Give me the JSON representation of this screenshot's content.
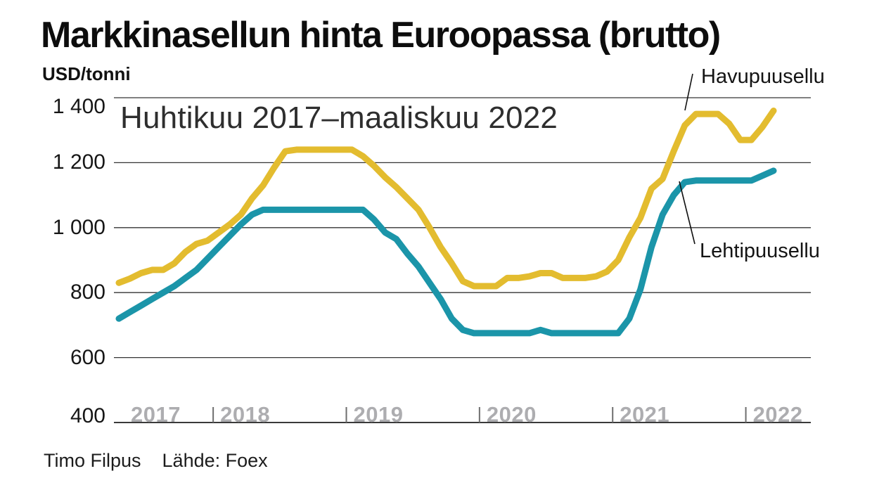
{
  "title": "Markkinasellun hinta Euroopassa (brutto)",
  "unit_label": "USD/tonni",
  "period_label": "Huhtikuu 2017–maaliskuu 2022",
  "footer": {
    "byline": "Timo Filpus",
    "source": "Lähde: Foex"
  },
  "chart_data": {
    "type": "line",
    "title": "Markkinasellun hinta Euroopassa (brutto)",
    "ylabel": "USD/tonni",
    "subtitle": "Huhtikuu 2017–maaliskuu 2022",
    "x_monthly_start": "2017-04",
    "x_monthly_end": "2022-03",
    "ylim": [
      400,
      1400
    ],
    "grid": "horizontal",
    "legend_position": "direct-annotations",
    "y_ticks": [
      {
        "value": 1400,
        "label": "1 400"
      },
      {
        "value": 1200,
        "label": "1 200"
      },
      {
        "value": 1000,
        "label": "1 000"
      },
      {
        "value": 800,
        "label": "800"
      },
      {
        "value": 600,
        "label": "600"
      },
      {
        "value": 400,
        "label": "400"
      }
    ],
    "x_ticks": [
      {
        "year": "2017",
        "tick": false
      },
      {
        "year": "2018",
        "tick": true
      },
      {
        "year": "2019",
        "tick": true
      },
      {
        "year": "2020",
        "tick": true
      },
      {
        "year": "2021",
        "tick": true
      },
      {
        "year": "2022",
        "tick": true
      }
    ],
    "series": [
      {
        "name": "Havupuusellu",
        "color": "#e3bc2f",
        "values": [
          830,
          843,
          860,
          870,
          870,
          890,
          925,
          950,
          960,
          985,
          1010,
          1040,
          1090,
          1130,
          1185,
          1235,
          1240,
          1240,
          1240,
          1240,
          1240,
          1240,
          1220,
          1190,
          1155,
          1125,
          1090,
          1055,
          1000,
          940,
          890,
          835,
          820,
          820,
          820,
          845,
          845,
          850,
          860,
          860,
          845,
          845,
          845,
          850,
          865,
          900,
          970,
          1030,
          1120,
          1150,
          1235,
          1315,
          1350,
          1350,
          1350,
          1320,
          1270,
          1270,
          1310,
          1360
        ]
      },
      {
        "name": "Lehtipuusellu",
        "color": "#1b95a9",
        "values": [
          720,
          740,
          760,
          780,
          800,
          820,
          845,
          870,
          905,
          940,
          975,
          1010,
          1040,
          1055,
          1055,
          1055,
          1055,
          1055,
          1055,
          1055,
          1055,
          1055,
          1055,
          1025,
          985,
          965,
          920,
          880,
          830,
          780,
          720,
          685,
          675,
          675,
          675,
          675,
          675,
          675,
          685,
          675,
          675,
          675,
          675,
          675,
          675,
          675,
          720,
          810,
          940,
          1040,
          1100,
          1140,
          1145,
          1145,
          1145,
          1145,
          1145,
          1145,
          1160,
          1175
        ]
      }
    ]
  }
}
